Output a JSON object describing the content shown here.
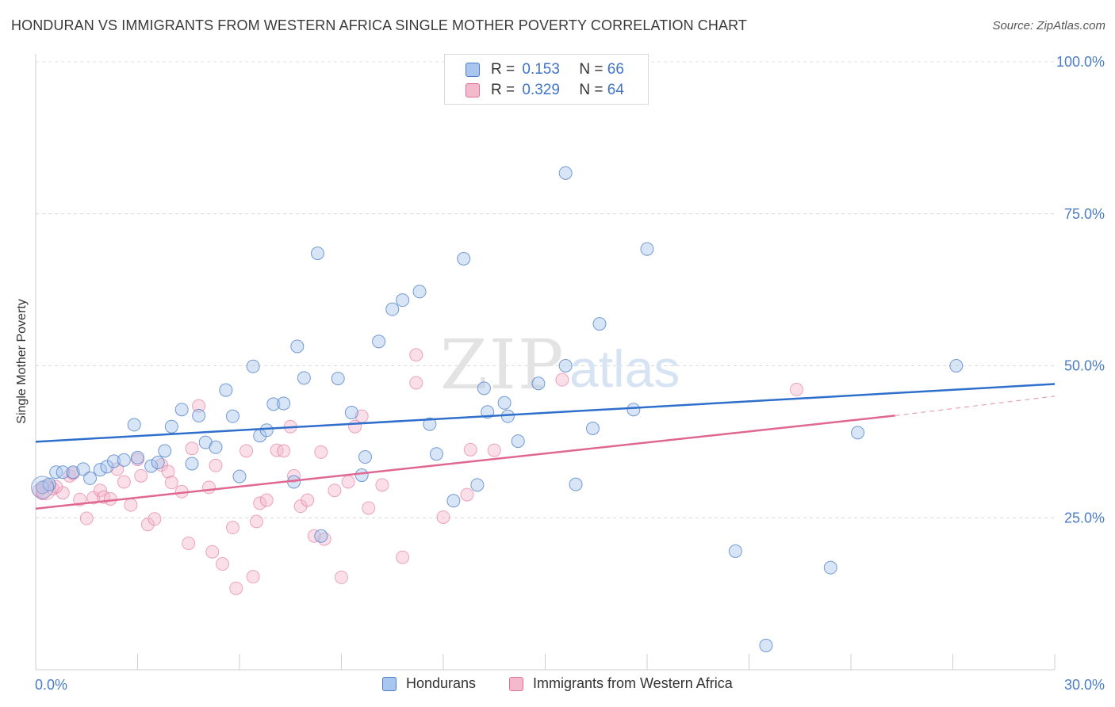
{
  "header": {
    "title": "HONDURAN VS IMMIGRANTS FROM WESTERN AFRICA SINGLE MOTHER POVERTY CORRELATION CHART",
    "source": "Source: ZipAtlas.com"
  },
  "watermark": {
    "zip": "ZIP",
    "atlas": "atlas"
  },
  "legend": {
    "rows": [
      {
        "r_label": "R =",
        "r_value": "0.153",
        "n_label": "N =",
        "n_value": "66"
      },
      {
        "r_label": "R =",
        "r_value": "0.329",
        "n_label": "N =",
        "n_value": "64"
      }
    ]
  },
  "bottom_legend": {
    "series1": "Hondurans",
    "series2": "Immigrants from Western Africa"
  },
  "chart_data": {
    "type": "scatter",
    "title": "HONDURAN VS IMMIGRANTS FROM WESTERN AFRICA SINGLE MOTHER POVERTY CORRELATION CHART",
    "ylabel": "Single Mother Poverty",
    "xlabel": "",
    "xlim": [
      0,
      30
    ],
    "ylim": [
      0,
      100
    ],
    "x_tick_labels": [
      "0.0%",
      "30.0%"
    ],
    "y_tick_labels": [
      "100.0%",
      "75.0%",
      "50.0%",
      "25.0%"
    ],
    "y_ticks": [
      100,
      75,
      50,
      25
    ],
    "grid": true,
    "legend_position": "top-center",
    "series": [
      {
        "name": "Hondurans",
        "color": "#4a7cc6",
        "fill": "#a9c6ee",
        "R": 0.153,
        "N": 66,
        "trend": {
          "x": [
            0,
            30
          ],
          "y": [
            37.5,
            47.0
          ]
        },
        "points": [
          [
            0.2,
            30.0
          ],
          [
            0.4,
            30.5
          ],
          [
            0.6,
            32.5
          ],
          [
            0.8,
            32.5
          ],
          [
            1.1,
            32.5
          ],
          [
            1.4,
            33.0
          ],
          [
            1.6,
            31.5
          ],
          [
            1.9,
            32.9
          ],
          [
            2.1,
            33.4
          ],
          [
            2.3,
            34.3
          ],
          [
            2.6,
            34.5
          ],
          [
            2.9,
            40.3
          ],
          [
            3.0,
            34.9
          ],
          [
            3.4,
            33.5
          ],
          [
            3.6,
            34.1
          ],
          [
            3.8,
            36.0
          ],
          [
            4.0,
            40.0
          ],
          [
            4.3,
            42.8
          ],
          [
            4.6,
            33.9
          ],
          [
            4.8,
            41.8
          ],
          [
            5.0,
            37.4
          ],
          [
            5.3,
            36.6
          ],
          [
            5.6,
            46.0
          ],
          [
            5.8,
            41.7
          ],
          [
            6.0,
            31.8
          ],
          [
            6.4,
            49.9
          ],
          [
            6.6,
            38.5
          ],
          [
            6.8,
            39.4
          ],
          [
            7.0,
            43.7
          ],
          [
            7.3,
            43.8
          ],
          [
            7.6,
            30.9
          ],
          [
            7.7,
            53.2
          ],
          [
            7.9,
            48.0
          ],
          [
            8.3,
            68.5
          ],
          [
            8.4,
            22.0
          ],
          [
            8.9,
            47.9
          ],
          [
            9.3,
            42.3
          ],
          [
            9.6,
            32.0
          ],
          [
            9.7,
            35.0
          ],
          [
            10.1,
            54.0
          ],
          [
            10.5,
            59.3
          ],
          [
            10.8,
            60.8
          ],
          [
            11.3,
            62.2
          ],
          [
            11.6,
            40.4
          ],
          [
            11.8,
            35.5
          ],
          [
            12.3,
            27.8
          ],
          [
            12.6,
            67.6
          ],
          [
            13.0,
            30.4
          ],
          [
            13.2,
            46.3
          ],
          [
            13.3,
            42.4
          ],
          [
            13.8,
            43.9
          ],
          [
            13.9,
            41.7
          ],
          [
            14.2,
            37.6
          ],
          [
            14.8,
            47.1
          ],
          [
            15.6,
            81.7
          ],
          [
            15.6,
            50.0
          ],
          [
            15.9,
            30.5
          ],
          [
            16.4,
            39.7
          ],
          [
            16.6,
            56.9
          ],
          [
            17.6,
            42.8
          ],
          [
            18.0,
            69.2
          ],
          [
            20.6,
            19.5
          ],
          [
            21.5,
            4.0
          ],
          [
            23.4,
            16.8
          ],
          [
            24.2,
            39.0
          ],
          [
            27.1,
            50.0
          ]
        ]
      },
      {
        "name": "Immigrants from Western Africa",
        "color": "#e07099",
        "fill": "#f5b9cc",
        "R": 0.329,
        "N": 64,
        "trend": {
          "x": [
            0,
            25.3
          ],
          "y": [
            26.5,
            41.8
          ]
        },
        "trend_dashed": {
          "x": [
            25.3,
            30
          ],
          "y": [
            41.8,
            45.0
          ]
        },
        "points": [
          [
            0.1,
            29.5
          ],
          [
            0.3,
            30.2
          ],
          [
            0.5,
            29.8
          ],
          [
            0.8,
            29.1
          ],
          [
            1.0,
            31.9
          ],
          [
            1.1,
            32.3
          ],
          [
            1.3,
            28.0
          ],
          [
            1.5,
            24.9
          ],
          [
            1.7,
            28.3
          ],
          [
            1.9,
            29.5
          ],
          [
            2.0,
            28.4
          ],
          [
            2.2,
            28.1
          ],
          [
            2.4,
            33.0
          ],
          [
            2.6,
            30.9
          ],
          [
            2.8,
            27.1
          ],
          [
            3.0,
            34.6
          ],
          [
            3.1,
            31.9
          ],
          [
            3.3,
            23.9
          ],
          [
            3.5,
            24.8
          ],
          [
            3.7,
            33.7
          ],
          [
            3.9,
            32.6
          ],
          [
            4.0,
            30.8
          ],
          [
            4.3,
            29.3
          ],
          [
            4.5,
            20.8
          ],
          [
            4.6,
            36.4
          ],
          [
            4.8,
            43.4
          ],
          [
            5.1,
            30.0
          ],
          [
            5.2,
            19.4
          ],
          [
            5.3,
            33.6
          ],
          [
            5.5,
            17.4
          ],
          [
            5.8,
            23.4
          ],
          [
            5.9,
            13.4
          ],
          [
            6.2,
            36.0
          ],
          [
            6.4,
            15.3
          ],
          [
            6.5,
            24.4
          ],
          [
            6.6,
            27.4
          ],
          [
            6.8,
            27.9
          ],
          [
            7.1,
            36.1
          ],
          [
            7.3,
            36.0
          ],
          [
            7.5,
            40.0
          ],
          [
            7.6,
            31.9
          ],
          [
            7.8,
            26.9
          ],
          [
            8.0,
            27.9
          ],
          [
            8.2,
            22.0
          ],
          [
            8.4,
            35.8
          ],
          [
            8.5,
            21.5
          ],
          [
            8.8,
            29.5
          ],
          [
            9.0,
            15.2
          ],
          [
            9.2,
            30.9
          ],
          [
            9.4,
            40.0
          ],
          [
            9.6,
            41.7
          ],
          [
            9.8,
            26.6
          ],
          [
            10.2,
            30.4
          ],
          [
            10.8,
            18.5
          ],
          [
            11.2,
            47.2
          ],
          [
            11.2,
            51.8
          ],
          [
            12.0,
            25.1
          ],
          [
            12.7,
            28.8
          ],
          [
            12.8,
            36.2
          ],
          [
            13.5,
            36.1
          ],
          [
            15.5,
            47.7
          ],
          [
            22.4,
            46.1
          ],
          [
            0.2,
            29.0
          ],
          [
            0.6,
            30.1
          ]
        ]
      }
    ]
  }
}
